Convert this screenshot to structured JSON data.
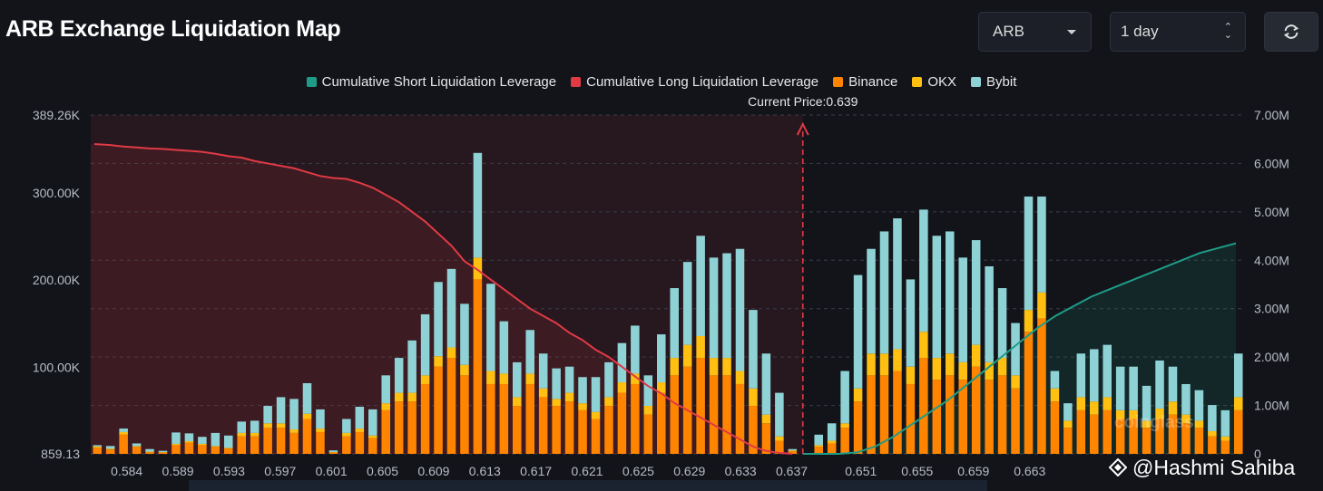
{
  "header": {
    "title": "ARB Exchange Liquidation Map"
  },
  "controls": {
    "symbol_value": "ARB",
    "range_value": "1 day",
    "refresh_icon": "refresh-icon"
  },
  "colors": {
    "short": "#1f9c87",
    "long": "#e03a45",
    "binance": "#ff8400",
    "okx": "#ffc012",
    "bybit": "#8fd2d5",
    "grid": "#3a3e48"
  },
  "watermark": {
    "handle": "@Hashmi Sahiba",
    "brand": "coinglass"
  },
  "chart_data": {
    "type": "bar",
    "legend": [
      "Cumulative Short Liquidation Leverage",
      "Cumulative Long Liquidation Leverage",
      "Binance",
      "OKX",
      "Bybit"
    ],
    "current_price_label": "Current Price:0.639",
    "current_price": 0.639,
    "y_left_ticks": [
      "389.26K",
      "300.00K",
      "200.00K",
      "100.00K",
      "859.13"
    ],
    "y_left_range": [
      859.13,
      389260
    ],
    "y_right_ticks": [
      "7.00M",
      "6.00M",
      "5.00M",
      "4.00M",
      "3.00M",
      "2.00M",
      "1.00M",
      "0"
    ],
    "y_right_range": [
      0,
      7000000
    ],
    "x_tick_labels": [
      "0.584",
      "0.589",
      "0.593",
      "0.597",
      "0.601",
      "0.605",
      "0.609",
      "0.613",
      "0.617",
      "0.621",
      "0.625",
      "0.629",
      "0.633",
      "0.637",
      "0.651",
      "0.655",
      "0.659",
      "0.663"
    ],
    "grid": true,
    "series": [
      {
        "name": "Binance",
        "values": [
          7000,
          5000,
          22000,
          8000,
          2000,
          1500,
          10000,
          13000,
          10000,
          8000,
          6000,
          20000,
          20000,
          30000,
          30000,
          24000,
          40000,
          25000,
          1500,
          20000,
          25000,
          18000,
          50000,
          60000,
          60000,
          80000,
          100000,
          110000,
          90000,
          200000,
          80000,
          80000,
          55000,
          80000,
          65000,
          55000,
          60000,
          50000,
          40000,
          55000,
          70000,
          80000,
          45000,
          70000,
          90000,
          100000,
          110000,
          90000,
          90000,
          80000,
          55000,
          35000,
          15000,
          3000,
          0,
          8000,
          12000,
          30000,
          60000,
          90000,
          90000,
          95000,
          80000,
          110000,
          85000,
          90000,
          85000,
          100000,
          85000,
          90000,
          75000,
          140000,
          155000,
          60000,
          30000,
          50000,
          45000,
          50000,
          40000,
          40000,
          30000,
          40000,
          45000,
          35000,
          30000,
          20000,
          15000,
          50000
        ]
      },
      {
        "name": "OKX",
        "values": [
          1500,
          1000,
          3000,
          1000,
          500,
          500,
          1500,
          1500,
          1500,
          1000,
          1000,
          4000,
          4000,
          5000,
          5000,
          4000,
          6000,
          4000,
          500,
          4000,
          4000,
          3000,
          8000,
          10000,
          10000,
          10000,
          12000,
          12000,
          12000,
          25000,
          15000,
          12000,
          10000,
          12000,
          10000,
          8000,
          10000,
          8000,
          8000,
          10000,
          12000,
          12000,
          10000,
          12000,
          20000,
          25000,
          25000,
          20000,
          20000,
          15000,
          20000,
          10000,
          5000,
          1000,
          0,
          2000,
          3000,
          5000,
          15000,
          25000,
          25000,
          25000,
          20000,
          30000,
          25000,
          25000,
          20000,
          25000,
          20000,
          20000,
          15000,
          25000,
          30000,
          15000,
          8000,
          15000,
          15000,
          15000,
          10000,
          10000,
          8000,
          12000,
          15000,
          10000,
          8000,
          6000,
          5000,
          15000
        ]
      },
      {
        "name": "Bybit",
        "values": [
          1500,
          3000,
          4000,
          3000,
          3000,
          1500,
          13000,
          9000,
          8000,
          15000,
          14000,
          13000,
          14000,
          20000,
          30000,
          35000,
          35000,
          22000,
          2000,
          16000,
          25000,
          30000,
          32000,
          40000,
          60000,
          70000,
          85000,
          90000,
          70000,
          120000,
          100000,
          60000,
          40000,
          50000,
          40000,
          35000,
          30000,
          30000,
          40000,
          40000,
          45000,
          55000,
          35000,
          55000,
          80000,
          95000,
          115000,
          115000,
          120000,
          140000,
          90000,
          70000,
          50000,
          1500,
          0,
          12000,
          20000,
          60000,
          130000,
          120000,
          140000,
          150000,
          100000,
          140000,
          140000,
          140000,
          120000,
          120000,
          110000,
          80000,
          60000,
          130000,
          110000,
          20000,
          20000,
          50000,
          60000,
          60000,
          50000,
          50000,
          40000,
          55000,
          40000,
          35000,
          35000,
          30000,
          30000,
          50000
        ]
      },
      {
        "name": "Cumulative Short Liquidation Leverage",
        "x_start": 0.639,
        "values": [
          0,
          0,
          0,
          30000,
          150000,
          350000,
          600000,
          850000,
          1100000,
          1400000,
          1700000,
          2000000,
          2300000,
          2600000,
          2850000,
          3050000,
          3250000,
          3400000,
          3550000,
          3700000,
          3850000,
          4000000,
          4150000,
          4250000,
          4350000
        ]
      },
      {
        "name": "Cumulative Long Liquidation Leverage",
        "values": [
          6400000,
          6380000,
          6350000,
          6330000,
          6310000,
          6300000,
          6280000,
          6260000,
          6240000,
          6200000,
          6150000,
          6120000,
          6050000,
          6000000,
          5950000,
          5900000,
          5820000,
          5740000,
          5700000,
          5680000,
          5600000,
          5500000,
          5350000,
          5200000,
          5000000,
          4800000,
          4550000,
          4300000,
          3980000,
          3800000,
          3600000,
          3400000,
          3200000,
          3000000,
          2850000,
          2700000,
          2500000,
          2350000,
          2150000,
          2000000,
          1800000,
          1600000,
          1400000,
          1250000,
          1050000,
          900000,
          750000,
          600000,
          450000,
          300000,
          150000,
          60000,
          20000,
          0
        ]
      }
    ]
  }
}
